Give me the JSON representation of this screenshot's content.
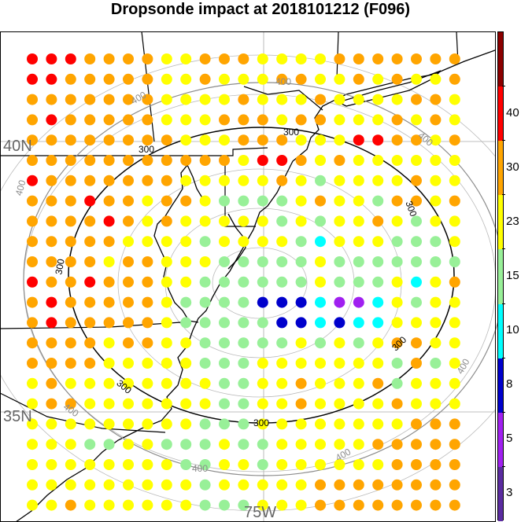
{
  "title": "Dropsonde impact at 2018101212 (F096)",
  "map_labels": {
    "lat_40": "40N",
    "lat_35": "35N",
    "lon_75": "75W"
  },
  "contours": {
    "c300": "300",
    "c400": "400"
  },
  "colorbar": {
    "ticks": [
      "3",
      "5",
      "8",
      "10",
      "15",
      "23",
      "30",
      "40"
    ],
    "colors": [
      "#5b2ca0",
      "#a020f0",
      "#0000cc",
      "#00ffff",
      "#98f098",
      "#ffff00",
      "#ffa500",
      "#ff0000",
      "#8b0000"
    ]
  },
  "point_colors": {
    "0": "#98f098",
    "1": "#ffff00",
    "2": "#ffa500",
    "3": "#ff0000",
    "4": "#00ffff",
    "5": "#0000cc",
    "6": "#a020f0",
    "7": "#8b0000"
  },
  "grid": [
    "33322221122211112222222",
    "33222221121112211212112",
    "22222221111211121111221",
    "23222221112221221112121",
    "22222222111222111332212",
    "22222222222133212111111",
    "32222222111112101111211",
    "22232212210000121102212",
    "22223212111110101121011",
    "22222111101111041110001",
    "22221221110000010000000",
    "32232221100000010001412",
    "23222221000055546641011",
    "23222221000005545441111",
    "22221221100000101012211",
    "22221111100011111110201",
    "12111111110011211120111",
    "12211111110011211112111",
    "11111111100011111111222",
    "11100110001001111122222",
    "11111111001101111112222",
    "11111111101111122222222",
    "11211111100011122222222"
  ]
}
